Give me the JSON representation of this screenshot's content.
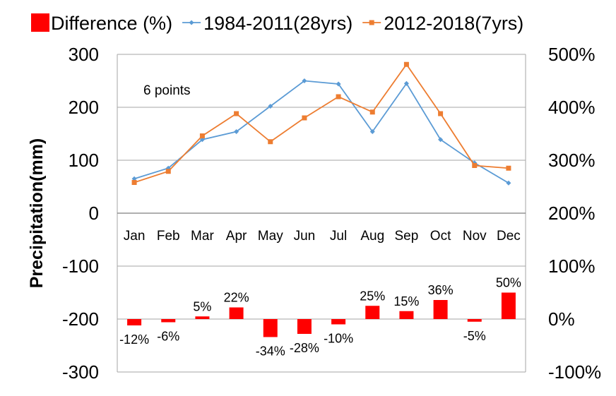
{
  "chart_data": {
    "type": "line",
    "title": "",
    "ylabel": "Precipitation(mm)",
    "ylabel_right": "",
    "categories": [
      "Jan",
      "Feb",
      "Mar",
      "Apr",
      "May",
      "Jun",
      "Jul",
      "Aug",
      "Sep",
      "Oct",
      "Nov",
      "Dec"
    ],
    "y_left": {
      "lim": [
        -300,
        300
      ],
      "ticks": [
        300,
        200,
        100,
        0,
        -100,
        -200,
        -300
      ]
    },
    "y_right": {
      "lim": [
        -100,
        500
      ],
      "ticks": [
        "500%",
        "400%",
        "300%",
        "200%",
        "100%",
        "0%",
        "-100%"
      ]
    },
    "grid": true,
    "legend_position": "top",
    "annotation": "6 points",
    "series": [
      {
        "name": "Difference (%)",
        "type": "bar",
        "axis": "right",
        "color": "#ff0000",
        "values": [
          -12,
          -6,
          5,
          22,
          -34,
          -28,
          -10,
          25,
          15,
          36,
          -5,
          50
        ],
        "labels": [
          "-12%",
          "-6%",
          "5%",
          "22%",
          "-34%",
          "-28%",
          "-10%",
          "25%",
          "15%",
          "36%",
          "-5%",
          "50%"
        ]
      },
      {
        "name": "1984-2011(28yrs)",
        "type": "line",
        "axis": "left",
        "color": "#5b9bd5",
        "marker": "diamond",
        "values": [
          65,
          85,
          139,
          154,
          202,
          250,
          244,
          154,
          245,
          139,
          95,
          57
        ]
      },
      {
        "name": "2012-2018(7yrs)",
        "type": "line",
        "axis": "left",
        "color": "#ed7d31",
        "marker": "square",
        "values": [
          58,
          79,
          146,
          188,
          135,
          180,
          220,
          191,
          281,
          188,
          90,
          85
        ]
      }
    ]
  }
}
